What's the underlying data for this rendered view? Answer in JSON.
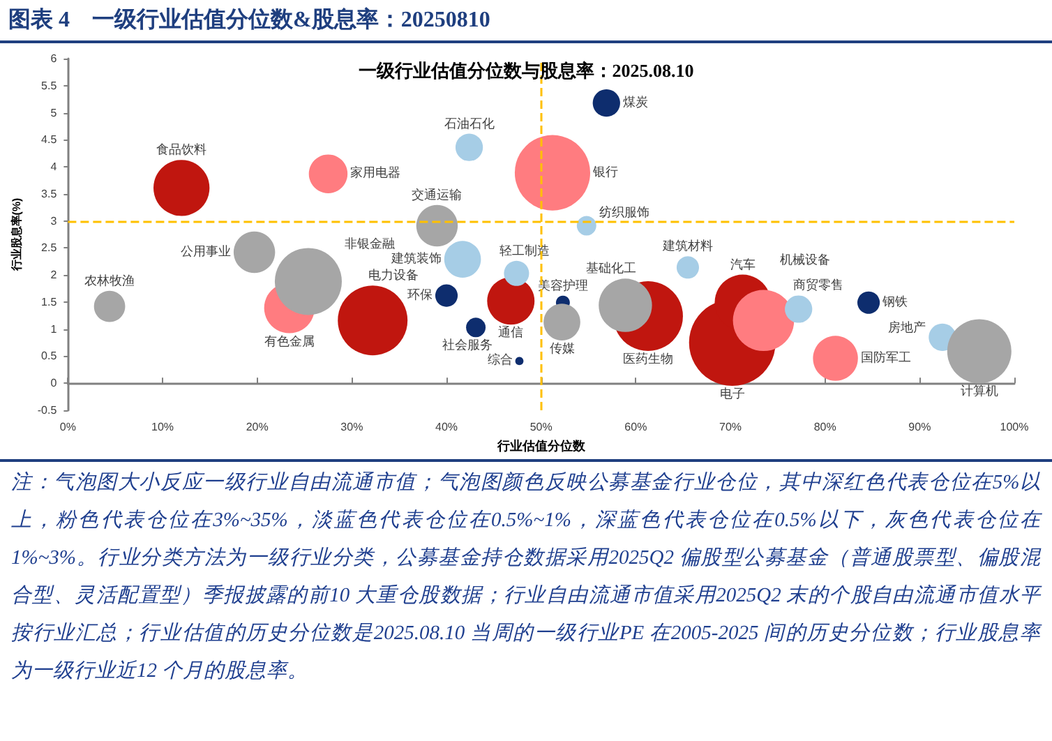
{
  "chart_data": {
    "type": "bubble",
    "title": "图表 4　一级行业估值分位数&股息率：20250810",
    "subtitle": "一级行业估值分位数与股息率：2025.08.10",
    "xlabel": "行业估值分位数",
    "ylabel": "行业股息率(%)",
    "xlim": [
      0,
      100
    ],
    "xticks": [
      {
        "value": 0,
        "label": "0%"
      },
      {
        "value": 10,
        "label": "10%"
      },
      {
        "value": 20,
        "label": "20%"
      },
      {
        "value": 30,
        "label": "30%"
      },
      {
        "value": 40,
        "label": "40%"
      },
      {
        "value": 50,
        "label": "50%"
      },
      {
        "value": 60,
        "label": "60%"
      },
      {
        "value": 70,
        "label": "70%"
      },
      {
        "value": 80,
        "label": "80%"
      },
      {
        "value": 90,
        "label": "90%"
      },
      {
        "value": 100,
        "label": "100%"
      }
    ],
    "ylim": [
      -0.5,
      6
    ],
    "yticks": [
      -0.5,
      0,
      0.5,
      1,
      1.5,
      2,
      2.5,
      3,
      3.5,
      4,
      4.5,
      5,
      5.5,
      6
    ],
    "ref_lines": [
      {
        "axis": "x",
        "value": 50,
        "color": "#ffc000",
        "line_style": "dashed"
      },
      {
        "axis": "y",
        "value": 3,
        "color": "#ffc000",
        "line_style": "dashed"
      }
    ],
    "annotations": [
      "注：气泡图大小反应一级行业自由流通市值；气泡图颜色反映公募基金行业仓位，其中深红色代表仓位在5%以上，粉色代表仓位在3%~35%，淡蓝色代表仓位在0.5%~1%，深蓝色代表仓位在0.5%以下，灰色代表仓位在1%~3%。行业分类方法为一级行业分类，公募基金持仓数据采用2025Q2 偏股型公募基金（普通股票型、偏股混合型、灵活配置型）季报披露的前10 大重仓股数据；行业自由流通市值采用2025Q2 末的个股自由流通市值水平按行业汇总；行业估值的历史分位数是2025.08.10 当周的一级行业PE 在2005-2025 间的历史分位数；行业股息率为一级行业近12 个月的股息率。"
    ],
    "series": [
      {
        "name": "食品饮料",
        "color": "#c0160f",
        "x": [
          12
        ],
        "values": [
          3.61
        ],
        "sizes": [
          0.42
        ]
      },
      {
        "name": "家用电器",
        "color": "#ff7c80",
        "x": [
          27.5
        ],
        "values": [
          3.87
        ],
        "sizes": [
          0.2
        ]
      },
      {
        "name": "石油石化",
        "color": "#a6cde6",
        "x": [
          42.4
        ],
        "values": [
          4.36
        ],
        "sizes": [
          0.1
        ]
      },
      {
        "name": "交通运输",
        "color": "#a6a6a6",
        "x": [
          39
        ],
        "values": [
          2.91
        ],
        "sizes": [
          0.23
        ]
      },
      {
        "name": "公用事业",
        "color": "#a6a6a6",
        "x": [
          19.7
        ],
        "values": [
          2.42
        ],
        "sizes": [
          0.23
        ]
      },
      {
        "name": "有色金属",
        "color": "#ff7c80",
        "x": [
          23.4
        ],
        "values": [
          1.39
        ],
        "sizes": [
          0.34
        ]
      },
      {
        "name": "非银金融",
        "color": "#a6a6a6",
        "x": [
          25.4
        ],
        "values": [
          1.88
        ],
        "sizes": [
          0.6
        ]
      },
      {
        "name": "农林牧渔",
        "color": "#a6a6a6",
        "x": [
          4.4
        ],
        "values": [
          1.42
        ],
        "sizes": [
          0.13
        ]
      },
      {
        "name": "电力设备",
        "color": "#c0160f",
        "x": [
          32.2
        ],
        "values": [
          1.16
        ],
        "sizes": [
          0.65
        ]
      },
      {
        "name": "建筑装饰",
        "color": "#a6cde6",
        "x": [
          41.7
        ],
        "values": [
          2.29
        ],
        "sizes": [
          0.18
        ]
      },
      {
        "name": "环保",
        "color": "#0e2d6e",
        "x": [
          40
        ],
        "values": [
          1.62
        ],
        "sizes": [
          0.067
        ]
      },
      {
        "name": "社会服务",
        "color": "#0e2d6e",
        "x": [
          43.1
        ],
        "values": [
          1.03
        ],
        "sizes": [
          0.051
        ]
      },
      {
        "name": "综合",
        "color": "#0e2d6e",
        "x": [
          47.7
        ],
        "values": [
          0.41
        ],
        "sizes": [
          0.009
        ]
      },
      {
        "name": "通信",
        "color": "#c0160f",
        "x": [
          46.8
        ],
        "values": [
          1.52
        ],
        "sizes": [
          0.3
        ]
      },
      {
        "name": "轻工制造",
        "color": "#a6cde6",
        "x": [
          47.4
        ],
        "values": [
          2.03
        ],
        "sizes": [
          0.084
        ]
      },
      {
        "name": "银行",
        "color": "#ff7c80",
        "x": [
          51.2
        ],
        "values": [
          3.89
        ],
        "sizes": [
          0.76
        ]
      },
      {
        "name": "煤炭",
        "color": "#0e2d6e",
        "x": [
          56.9
        ],
        "values": [
          5.18
        ],
        "sizes": [
          0.1
        ]
      },
      {
        "name": "纺织服饰",
        "color": "#a6cde6",
        "x": [
          54.8
        ],
        "values": [
          2.91
        ],
        "sizes": [
          0.051
        ]
      },
      {
        "name": "美容护理",
        "color": "#0e2d6e",
        "x": [
          52.3
        ],
        "values": [
          1.49
        ],
        "sizes": [
          0.026
        ]
      },
      {
        "name": "传媒",
        "color": "#a6a6a6",
        "x": [
          52.2
        ],
        "values": [
          1.13
        ],
        "sizes": [
          0.18
        ]
      },
      {
        "name": "医药生物",
        "color": "#c0160f",
        "x": [
          61.3
        ],
        "values": [
          1.24
        ],
        "sizes": [
          0.65
        ]
      },
      {
        "name": "基础化工",
        "color": "#a6a6a6",
        "x": [
          58.9
        ],
        "values": [
          1.44
        ],
        "sizes": [
          0.38
        ]
      },
      {
        "name": "建筑材料",
        "color": "#a6cde6",
        "x": [
          65.5
        ],
        "values": [
          2.14
        ],
        "sizes": [
          0.067
        ]
      },
      {
        "name": "电子",
        "color": "#c0160f",
        "x": [
          70.2
        ],
        "values": [
          0.75
        ],
        "sizes": [
          1
        ]
      },
      {
        "name": "汽车",
        "color": "#c0160f",
        "x": [
          71.3
        ],
        "values": [
          1.49
        ],
        "sizes": [
          0.42
        ]
      },
      {
        "name": "机械设备",
        "color": "#ff7c80",
        "x": [
          73.5
        ],
        "values": [
          1.16
        ],
        "sizes": [
          0.5
        ]
      },
      {
        "name": "商贸零售",
        "color": "#a6cde6",
        "x": [
          77.2
        ],
        "values": [
          1.37
        ],
        "sizes": [
          0.1
        ]
      },
      {
        "name": "钢铁",
        "color": "#0e2d6e",
        "x": [
          84.6
        ],
        "values": [
          1.49
        ],
        "sizes": [
          0.067
        ]
      },
      {
        "name": "国防军工",
        "color": "#ff7c80",
        "x": [
          81.1
        ],
        "values": [
          0.46
        ],
        "sizes": [
          0.27
        ]
      },
      {
        "name": "房地产",
        "color": "#a6cde6",
        "x": [
          92.4
        ],
        "values": [
          0.85
        ],
        "sizes": [
          0.1
        ]
      },
      {
        "name": "计算机",
        "color": "#a6a6a6",
        "x": [
          96.3
        ],
        "values": [
          0.59
        ],
        "sizes": [
          0.55
        ]
      }
    ]
  }
}
